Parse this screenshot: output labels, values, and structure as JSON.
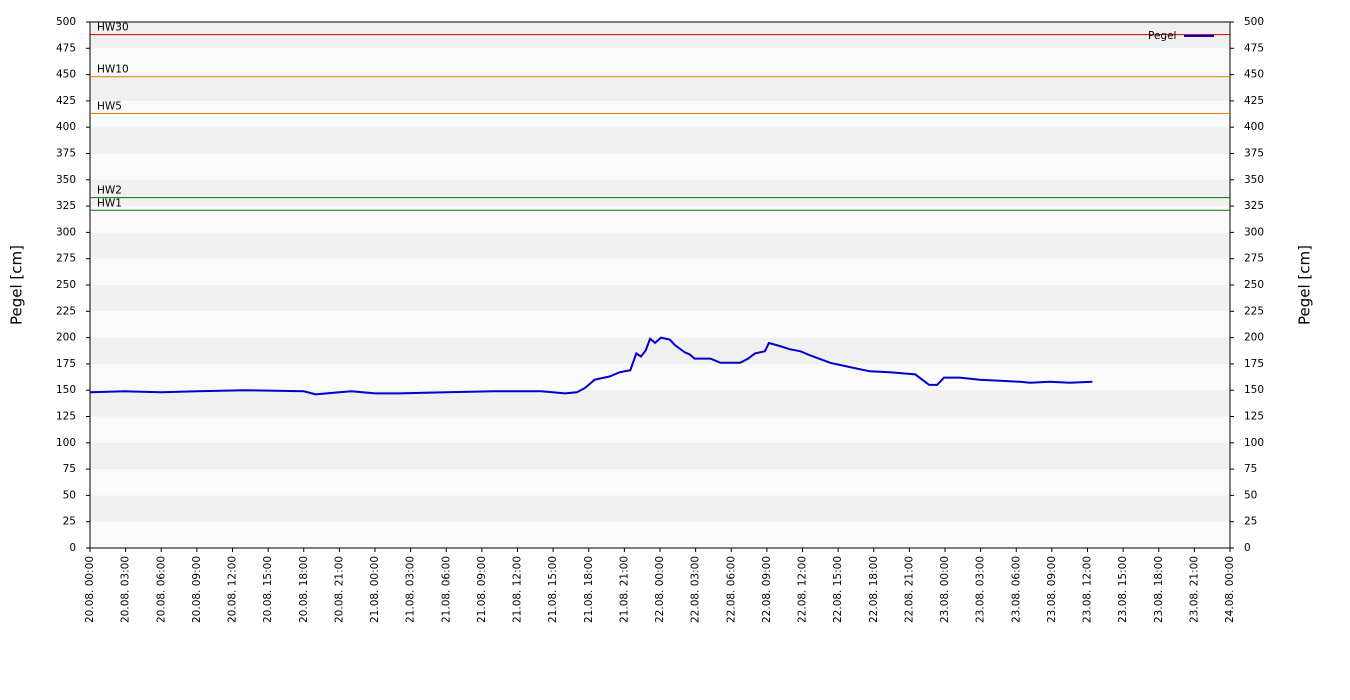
{
  "chart_data": {
    "type": "line",
    "y_label": "Pegel [cm]",
    "y2_label": "Pegel [cm]",
    "ylim": [
      0,
      500
    ],
    "yticks": [
      0,
      25,
      50,
      75,
      100,
      125,
      150,
      175,
      200,
      225,
      250,
      275,
      300,
      325,
      350,
      375,
      400,
      425,
      450,
      475,
      500
    ],
    "xlim": [
      "20.08. 00:00",
      "24.08. 00:00"
    ],
    "xticks": [
      "20.08. 00:00",
      "20.08. 03:00",
      "20.08. 06:00",
      "20.08. 09:00",
      "20.08. 12:00",
      "20.08. 15:00",
      "20.08. 18:00",
      "20.08. 21:00",
      "21.08. 00:00",
      "21.08. 03:00",
      "21.08. 06:00",
      "21.08. 09:00",
      "21.08. 12:00",
      "21.08. 15:00",
      "21.08. 18:00",
      "21.08. 21:00",
      "22.08. 00:00",
      "22.08. 03:00",
      "22.08. 06:00",
      "22.08. 09:00",
      "22.08. 12:00",
      "22.08. 15:00",
      "22.08. 18:00",
      "22.08. 21:00",
      "23.08. 00:00",
      "23.08. 03:00",
      "23.08. 06:00",
      "23.08. 09:00",
      "23.08. 12:00",
      "23.08. 15:00",
      "23.08. 18:00",
      "23.08. 21:00",
      "24.08. 00:00"
    ],
    "legend": "upper right",
    "band_colors": [
      "#fafafa",
      "#f0f0f0"
    ],
    "reference_lines": [
      {
        "label": "HW30",
        "value": 488,
        "color": "#cc0000"
      },
      {
        "label": "HW10",
        "value": 448,
        "color": "#e08000"
      },
      {
        "label": "HW5",
        "value": 413,
        "color": "#e08000"
      },
      {
        "label": "HW2",
        "value": 333,
        "color": "#007700"
      },
      {
        "label": "HW1",
        "value": 321,
        "color": "#007700"
      }
    ],
    "series": [
      {
        "name": "Pegel",
        "color": "#0000cc",
        "x": [
          "20.08. 00:00",
          "20.08. 03:00",
          "20.08. 06:00",
          "20.08. 09:00",
          "20.08. 13:00",
          "20.08. 18:00",
          "20.08. 19:00",
          "20.08. 21:00",
          "20.08. 22:00",
          "21.08. 00:00",
          "21.08. 02:00",
          "21.08. 06:00",
          "21.08. 10:00",
          "21.08. 14:00",
          "21.08. 16:00",
          "21.08. 17:00",
          "21.08. 17:40",
          "21.08. 18:30",
          "21.08. 19:45",
          "21.08. 20:35",
          "21.08. 21:30",
          "21.08. 21:45",
          "21.08. 22:00",
          "21.08. 22:24",
          "21.08. 22:48",
          "21.08. 23:10",
          "21.08. 23:35",
          "22.08. 00:05",
          "22.08. 00:50",
          "22.08. 01:15",
          "22.08. 02:05",
          "22.08. 02:30",
          "22.08. 02:55",
          "22.08. 04:15",
          "22.08. 05:05",
          "22.08. 06:45",
          "22.08. 07:25",
          "22.08. 08:00",
          "22.08. 08:50",
          "22.08. 09:10",
          "22.08. 10:05",
          "22.08. 10:55",
          "22.08. 11:50",
          "22.08. 12:40",
          "22.08. 14:20",
          "22.08. 16:00",
          "22.08. 17:40",
          "22.08. 19:20",
          "22.08. 21:30",
          "22.08. 22:05",
          "22.08. 22:40",
          "22.08. 23:20",
          "22.08. 23:55",
          "23.08. 01:15",
          "23.08. 02:55",
          "23.08. 06:20",
          "23.08. 07:10",
          "23.08. 08:50",
          "23.08. 10:30",
          "23.08. 12:25"
        ],
        "values": [
          148,
          149,
          148,
          149,
          150,
          149,
          146,
          148,
          149,
          147,
          147,
          148,
          149,
          149,
          147,
          148,
          152,
          160,
          163,
          167,
          169,
          177,
          185,
          182,
          188,
          199,
          195,
          200,
          198,
          193,
          186,
          184,
          180,
          180,
          176,
          176,
          180,
          185,
          187,
          195,
          192,
          189,
          187,
          183,
          176,
          172,
          168,
          167,
          165,
          160,
          155,
          155,
          162,
          162,
          160,
          158,
          157,
          158,
          157,
          158
        ]
      }
    ]
  }
}
